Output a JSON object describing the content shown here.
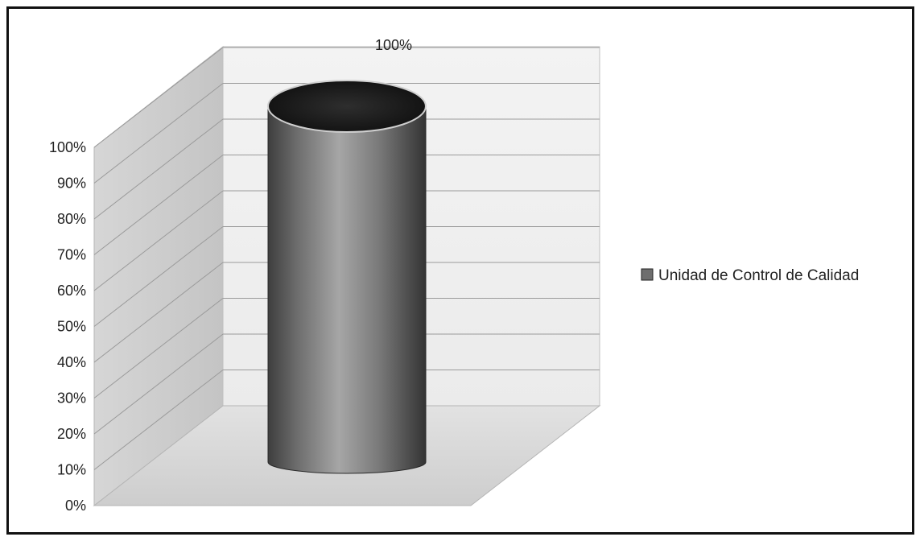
{
  "chart_data": {
    "type": "bar",
    "style": "3d-cylinder",
    "categories": [
      ""
    ],
    "series": [
      {
        "name": "Unidad de Control de Calidad",
        "values": [
          100
        ]
      }
    ],
    "data_labels": [
      "100%"
    ],
    "ylim": [
      0,
      100
    ],
    "yticks": [
      "0%",
      "10%",
      "20%",
      "30%",
      "40%",
      "50%",
      "60%",
      "70%",
      "80%",
      "90%",
      "100%"
    ],
    "title": "",
    "xlabel": "",
    "ylabel": "",
    "grid": true,
    "legend_position": "right",
    "colors": {
      "bar": "#7a7a7a",
      "bar_top": "#1c1c1c",
      "wall": "#e6e6e6",
      "floor": "#d9d9d9",
      "gridline": "#9a9a9a"
    }
  }
}
